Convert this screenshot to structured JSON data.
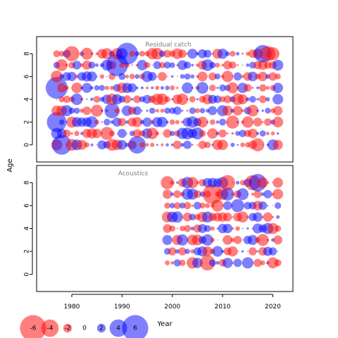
{
  "chart_data": {
    "type": "scatter",
    "subtype": "bubble",
    "xlabel": "Year",
    "ylabel": "Age",
    "xticks": [
      1980,
      1990,
      2000,
      2010,
      2020
    ],
    "yticks": [
      0,
      2,
      4,
      6,
      8
    ],
    "xlim": [
      1973,
      2024
    ],
    "ylim": [
      -1.5,
      9.5
    ],
    "panels": [
      {
        "title": "Residual catch",
        "years": [
          1977,
          2021
        ],
        "ages": [
          0,
          8
        ],
        "seed": 7,
        "fixed": [
          {
            "x": 1977,
            "y": 5,
            "r": 5
          },
          {
            "x": 1977,
            "y": 2,
            "r": 4.5
          },
          {
            "x": 1978,
            "y": 0,
            "r": 4.5
          },
          {
            "x": 1989,
            "y": 7,
            "r": 5
          },
          {
            "x": 1991,
            "y": 8,
            "r": 5
          },
          {
            "x": 1988,
            "y": 3,
            "r": 3.5
          },
          {
            "x": 1993,
            "y": 0,
            "r": 4
          },
          {
            "x": 2018,
            "y": 8,
            "r": 4
          },
          {
            "x": 2019,
            "y": 8,
            "r": -3.5
          },
          {
            "x": 2020,
            "y": 8,
            "r": -3
          },
          {
            "x": 2012,
            "y": 2,
            "r": -3
          },
          {
            "x": 2017,
            "y": 0,
            "r": -3
          },
          {
            "x": 1980,
            "y": 8,
            "r": -3.5
          },
          {
            "x": 1987,
            "y": 1,
            "r": -3
          }
        ]
      },
      {
        "title": "Acoustics",
        "years": [
          1999,
          2021
        ],
        "ages": [
          1,
          8
        ],
        "seed": 23,
        "fixed": [
          {
            "x": 2008,
            "y": 7,
            "r": -4.5
          },
          {
            "x": 2007,
            "y": 1,
            "r": -3.5
          },
          {
            "x": 2016,
            "y": 8,
            "r": -3.5
          },
          {
            "x": 2017,
            "y": 8,
            "r": 4
          },
          {
            "x": 2011,
            "y": 8,
            "r": -3.5
          },
          {
            "x": 1999,
            "y": 8,
            "r": -3
          },
          {
            "x": 2011,
            "y": 7,
            "r": 3
          },
          {
            "x": 2013,
            "y": 6,
            "r": 3
          }
        ]
      }
    ],
    "legend": {
      "values": [
        -6,
        -4,
        -2,
        0,
        2,
        4,
        6
      ],
      "labels": [
        "-6",
        "-4",
        "-2",
        "0",
        "2",
        "4",
        "6"
      ],
      "placement": "bottom-left"
    },
    "colors": {
      "positive": "#0000ff",
      "negative": "#ff0000",
      "fill_opacity": 0.5,
      "title": "#7f7f7f"
    }
  }
}
